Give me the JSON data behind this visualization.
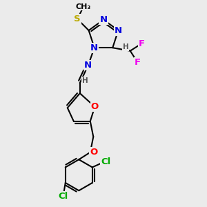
{
  "bg_color": "#ebebeb",
  "atom_colors": {
    "C": "#000000",
    "N": "#0000dd",
    "O": "#ff0000",
    "S": "#bbaa00",
    "F": "#ee00ee",
    "Cl": "#00aa00",
    "H": "#555555"
  },
  "bond_color": "#000000",
  "bond_width": 1.5,
  "font_size": 9.5,
  "fig_size": [
    3.0,
    3.0
  ],
  "dpi": 100,
  "xlim": [
    0,
    10
  ],
  "ylim": [
    0,
    10
  ]
}
